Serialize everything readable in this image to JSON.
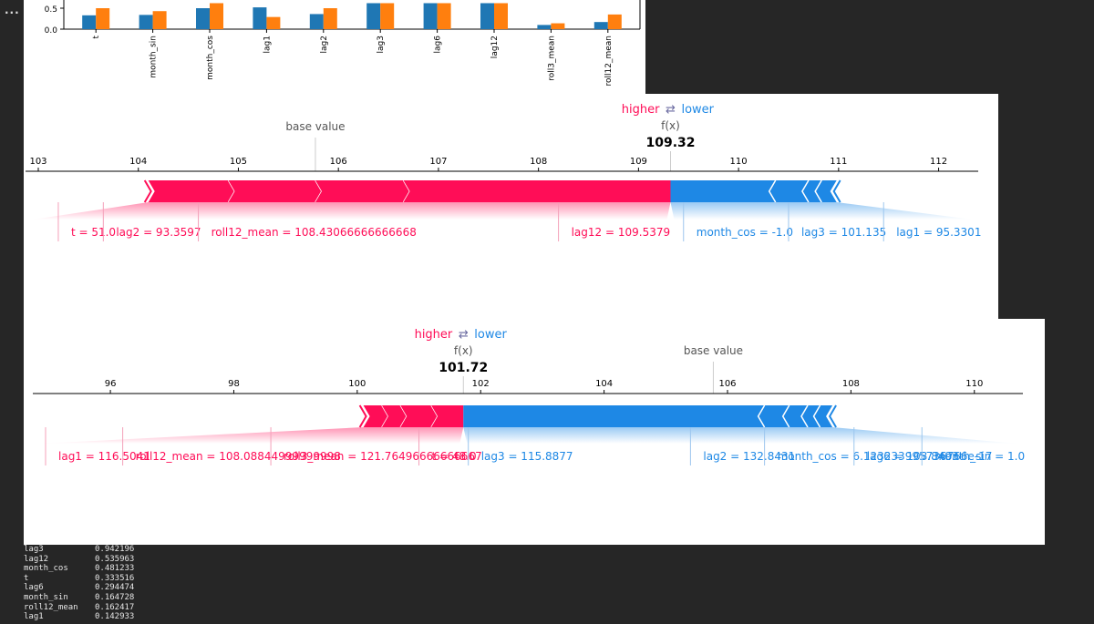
{
  "toolbar": {
    "more_label": "..."
  },
  "bar_chart": {
    "type": "bar",
    "categories": [
      "t",
      "month_sin",
      "month_cos",
      "lag1",
      "lag2",
      "lag3",
      "lag6",
      "lag12",
      "roll3_mean",
      "roll12_mean"
    ],
    "series": [
      {
        "color": "#1f77b4",
        "values": [
          0.33,
          0.34,
          0.5,
          0.52,
          0.36,
          0.62,
          0.62,
          0.62,
          0.1,
          0.17
        ]
      },
      {
        "color": "#ff7f0e",
        "values": [
          0.5,
          0.43,
          0.62,
          0.29,
          0.5,
          0.62,
          0.62,
          0.62,
          0.14,
          0.35
        ]
      }
    ],
    "y_ticks": [
      "0.5",
      "0.0"
    ],
    "y_tick_values": [
      0.5,
      0.0
    ]
  },
  "chart_data": [
    {
      "type": "force",
      "legend_higher": "higher",
      "legend_arrow": "⇄",
      "legend_lower": "lower",
      "fx_label": "f(x)",
      "fx_value": "109.32",
      "fx_numeric": 109.32,
      "base_label": "base value",
      "base_numeric": 105.77,
      "xlim": [
        103,
        112.25
      ],
      "ticks": [
        103,
        104,
        105,
        106,
        107,
        108,
        109,
        110,
        111,
        112
      ],
      "tick_labels": [
        "103",
        "104",
        "105",
        "106",
        "107",
        "108",
        "109",
        "110",
        "111",
        "112"
      ],
      "pink_edges": [
        104.1,
        104.9,
        105.77,
        106.65,
        109.32
      ],
      "blue_edges": [
        109.32,
        110.37,
        110.7,
        110.83,
        110.98
      ],
      "labels_pos": [
        {
          "text": "t = 51.0",
          "x": 103.2
        },
        {
          "text": "lag2 = 93.3597",
          "x": 103.65
        },
        {
          "text": "roll12_mean = 108.43066666666668",
          "x": 104.6
        },
        {
          "text": "lag12 = 109.5379",
          "x": 108.2
        },
        {
          "text": "month_cos = -1.0",
          "x": 109.45
        },
        {
          "text": "lag3 = 101.135",
          "x": 110.5
        },
        {
          "text": "lag1 = 95.3301",
          "x": 111.45
        }
      ]
    },
    {
      "type": "force",
      "legend_higher": "higher",
      "legend_arrow": "⇄",
      "legend_lower": "lower",
      "fx_label": "f(x)",
      "fx_value": "101.72",
      "fx_numeric": 101.72,
      "base_label": "base value",
      "base_numeric": 105.77,
      "xlim": [
        94.95,
        110.55
      ],
      "ticks": [
        96,
        98,
        100,
        102,
        104,
        106,
        108,
        110
      ],
      "tick_labels": [
        "96",
        "98",
        "100",
        "102",
        "104",
        "106",
        "108",
        "110"
      ],
      "pink_edges": [
        100.1,
        100.4,
        100.7,
        101.2,
        101.72
      ],
      "blue_edges": [
        101.72,
        106.6,
        107.0,
        107.3,
        107.5,
        107.7
      ],
      "labels_pos": [
        {
          "text": "lag1 = 116.5041",
          "x": 94.95
        },
        {
          "text": "roll12_mean = 108.08844999999998",
          "x": 96.2
        },
        {
          "text": "roll3_mean = 121.76496666666667",
          "x": 98.6
        },
        {
          "text": "t = 48.0",
          "x": 101.0
        },
        {
          "text": "lag3 = 115.8877",
          "x": 101.8
        },
        {
          "text": "lag2 = 132.8431",
          "x": 105.4
        },
        {
          "text": "month_cos = 6.123233995736766e-17",
          "x": 106.6
        },
        {
          "text": "lag6 = 108.8493",
          "x": 108.05
        },
        {
          "text": "month_sin = 1.0",
          "x": 109.15
        }
      ]
    }
  ],
  "output_rows": [
    {
      "name": "lag3",
      "value": "0.942196"
    },
    {
      "name": "lag12",
      "value": "0.535963"
    },
    {
      "name": "month_cos",
      "value": "0.481233"
    },
    {
      "name": "t",
      "value": "0.333516"
    },
    {
      "name": "lag6",
      "value": "0.294474"
    },
    {
      "name": "month_sin",
      "value": "0.164728"
    },
    {
      "name": "roll12_mean",
      "value": "0.162417"
    },
    {
      "name": "lag1",
      "value": "0.142933"
    }
  ]
}
